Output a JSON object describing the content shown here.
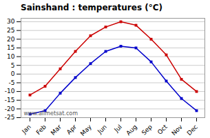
{
  "chart_data": {
    "type": "line",
    "title": "Sainshand : temperatures (°C)",
    "categories": [
      "Jan",
      "Feb",
      "Mar",
      "Apr",
      "May",
      "Jun",
      "Jul",
      "Aug",
      "Sep",
      "Oct",
      "Nov",
      "Dec"
    ],
    "series": [
      {
        "color": "#cc0000",
        "marker": "square",
        "values": [
          -12,
          -7,
          3,
          13,
          22,
          27,
          30,
          28,
          20,
          11,
          -3,
          -10
        ]
      },
      {
        "color": "#0000cc",
        "marker": "square",
        "values": [
          -23,
          -21,
          -11,
          -2,
          6,
          13,
          16,
          15,
          7,
          -4,
          -14,
          -21
        ]
      }
    ],
    "ylim": [
      -25,
      32
    ],
    "yticks": [
      -25,
      -20,
      -15,
      -10,
      -5,
      0,
      5,
      10,
      15,
      20,
      25,
      30
    ],
    "grid": true,
    "annotations": [
      "www.allmetsat.com"
    ]
  }
}
